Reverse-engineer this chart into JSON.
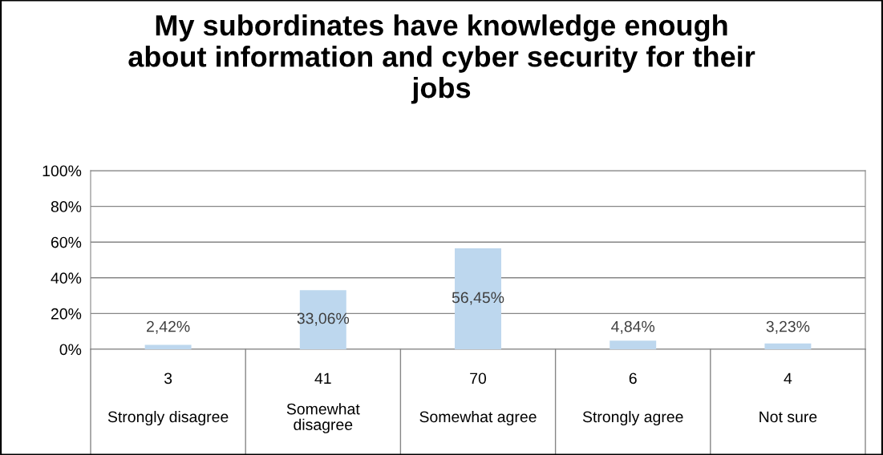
{
  "chart_data": {
    "type": "bar",
    "title": "My subordinates have knowledge enough about information and cyber security for their jobs",
    "categories": [
      "Strongly disagree",
      "Somewhat disagree",
      "Somewhat agree",
      "Strongly agree",
      "Not sure"
    ],
    "values": [
      2.42,
      33.06,
      56.45,
      4.84,
      3.23
    ],
    "value_labels": [
      "2,42%",
      "33,06%",
      "56,45%",
      "4,84%",
      "3,23%"
    ],
    "annotations": [
      "3",
      "41",
      "70",
      "6",
      "4"
    ],
    "color": "#bdd7ee",
    "ylim": [
      0,
      100
    ],
    "yticks": [
      {
        "value": 0,
        "label": "0%"
      },
      {
        "value": 20,
        "label": "20%"
      },
      {
        "value": 40,
        "label": "40%"
      },
      {
        "value": 60,
        "label": "60%"
      },
      {
        "value": 80,
        "label": "80%"
      },
      {
        "value": 100,
        "label": "100%"
      }
    ],
    "grid": "y"
  }
}
